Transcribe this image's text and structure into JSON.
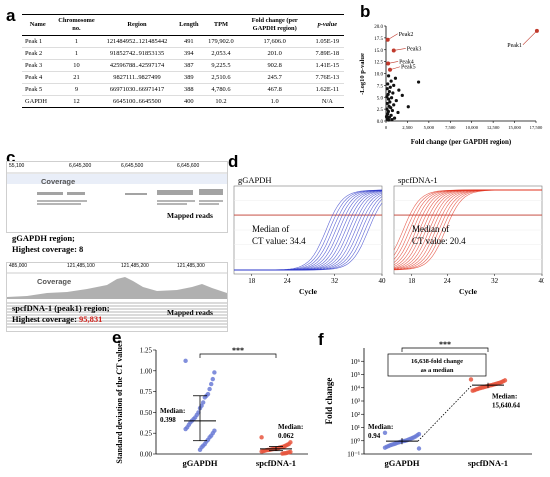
{
  "panels": {
    "a": "a",
    "b": "b",
    "c": "c",
    "d": "d",
    "e": "e",
    "f": "f"
  },
  "table": {
    "headers": [
      "Name",
      "Chromosome no.",
      "Region",
      "Length",
      "TPM",
      "Fold change (per GAPDH region)",
      "p-value"
    ],
    "rows": [
      [
        "Peak 1",
        "1",
        "121484952..121485442",
        "491",
        "179,902.0",
        "17,606.0",
        "1.05E-19"
      ],
      [
        "Peak 2",
        "1",
        "91852742..91853135",
        "394",
        "2,053.4",
        "201.0",
        "7.89E-18"
      ],
      [
        "Peak 3",
        "10",
        "42596788..42597174",
        "387",
        "9,225.5",
        "902.8",
        "1.41E-15"
      ],
      [
        "Peak 4",
        "21",
        "9827111..9827499",
        "389",
        "2,510.6",
        "245.7",
        "7.76E-13"
      ],
      [
        "Peak 5",
        "9",
        "66971030..66971417",
        "388",
        "4,780.6",
        "467.8",
        "1.62E-11"
      ],
      [
        "GAPDH",
        "12",
        "6645100..6645500",
        "400",
        "10.2",
        "1.0",
        "N/A"
      ]
    ]
  },
  "igv": {
    "top": {
      "ticks": [
        "55,100",
        "6,645,300",
        "6,645,500",
        "6,645,600"
      ],
      "coverage": "Coverage",
      "mapped": "Mapped reads",
      "title": "gGAPDH region;",
      "subtitle": "Highest coverage: 8"
    },
    "bottom": {
      "ticks": [
        "485,000",
        "121,485,100",
        "121,485,200",
        "121,485,300"
      ],
      "coverage": "Coverage",
      "mapped": "Mapped reads",
      "title": "spcfDNA-1 (peak1) region;",
      "subtitle_prefix": "Highest coverage: ",
      "subtitle_value": "95,831"
    }
  },
  "chart_data": [
    {
      "id": "b",
      "type": "scatter",
      "xlabel": "Fold change (per GAPDH region)",
      "ylabel": "-Log10 p-value",
      "xlim": [
        0,
        17500
      ],
      "ylim": [
        0,
        20
      ],
      "xticks": [
        "0",
        "2,500",
        "5,000",
        "7,500",
        "10,000",
        "12,500",
        "15,000",
        "17,500"
      ],
      "yticks": [
        "0.0",
        "2.5",
        "5.0",
        "7.5",
        "10.0",
        "12.5",
        "15.0",
        "17.5",
        "20.0"
      ],
      "labeled_points": [
        {
          "name": "Peak1",
          "x": 17606,
          "y": 18.98
        },
        {
          "name": "Peak2",
          "x": 201,
          "y": 17.1
        },
        {
          "name": "Peak3",
          "x": 902.8,
          "y": 14.85
        },
        {
          "name": "Peak4",
          "x": 245.7,
          "y": 12.11
        },
        {
          "name": "Peak5",
          "x": 467.8,
          "y": 10.79
        }
      ],
      "other_points": [
        {
          "x": 300,
          "y": 9.5
        },
        {
          "x": 1100,
          "y": 9.0
        },
        {
          "x": 600,
          "y": 8.4
        },
        {
          "x": 3800,
          "y": 8.2
        },
        {
          "x": 200,
          "y": 7.8
        },
        {
          "x": 900,
          "y": 7.5
        },
        {
          "x": 500,
          "y": 7.1
        },
        {
          "x": 150,
          "y": 6.8
        },
        {
          "x": 1500,
          "y": 6.5
        },
        {
          "x": 400,
          "y": 6.2
        },
        {
          "x": 800,
          "y": 5.9
        },
        {
          "x": 250,
          "y": 5.6
        },
        {
          "x": 1900,
          "y": 5.4
        },
        {
          "x": 100,
          "y": 5.1
        },
        {
          "x": 650,
          "y": 4.9
        },
        {
          "x": 300,
          "y": 4.6
        },
        {
          "x": 1200,
          "y": 4.3
        },
        {
          "x": 450,
          "y": 4.0
        },
        {
          "x": 150,
          "y": 3.7
        },
        {
          "x": 900,
          "y": 3.4
        },
        {
          "x": 350,
          "y": 3.1
        },
        {
          "x": 2600,
          "y": 3.0
        },
        {
          "x": 550,
          "y": 2.8
        },
        {
          "x": 120,
          "y": 2.5
        },
        {
          "x": 750,
          "y": 2.2
        },
        {
          "x": 280,
          "y": 2.0
        },
        {
          "x": 1400,
          "y": 1.8
        },
        {
          "x": 200,
          "y": 1.5
        },
        {
          "x": 600,
          "y": 1.2
        },
        {
          "x": 90,
          "y": 1.0
        },
        {
          "x": 400,
          "y": 0.8
        },
        {
          "x": 1000,
          "y": 0.6
        },
        {
          "x": 180,
          "y": 0.4
        },
        {
          "x": 320,
          "y": 0.2
        },
        {
          "x": 700,
          "y": 0.3
        },
        {
          "x": 60,
          "y": 0.9
        }
      ]
    },
    {
      "id": "d",
      "type": "line",
      "panels": [
        {
          "title": "gGAPDH",
          "annotation": [
            "Median of",
            "CT value: 34.4"
          ],
          "color": "#2b35c8",
          "center": 34.4
        },
        {
          "title": "spcfDNA-1",
          "annotation": [
            "Median of",
            "CT value: 20.4"
          ],
          "color": "#e0301e",
          "center": 20.4
        }
      ],
      "xlabel": "Cycle",
      "xticks": [
        "18",
        "24",
        "32",
        "40"
      ],
      "xlim": [
        15,
        40
      ]
    },
    {
      "id": "e",
      "type": "scatter",
      "ylabel": "Standard deviation of the CT values",
      "categories": [
        "gGAPDH",
        "spcfDNA-1"
      ],
      "ylim": [
        0,
        1.25
      ],
      "yticks": [
        "0.00",
        "0.25",
        "0.50",
        "0.75",
        "1.00",
        "1.25"
      ],
      "median_labels": [
        [
          "Median:",
          "0.398"
        ],
        [
          "Median:",
          "0.062"
        ]
      ],
      "significance": "***",
      "series": [
        {
          "name": "gGAPDH",
          "color": "#6b7bd6",
          "median": 0.398,
          "q1": 0.16,
          "q3": 0.7,
          "values": [
            1.12,
            0.98,
            0.9,
            0.84,
            0.78,
            0.72,
            0.7,
            0.68,
            0.62,
            0.58,
            0.55,
            0.5,
            0.47,
            0.44,
            0.42,
            0.4,
            0.38,
            0.35,
            0.32,
            0.3,
            0.28,
            0.25,
            0.22,
            0.2,
            0.17,
            0.15,
            0.12,
            0.1,
            0.08,
            0.05
          ]
        },
        {
          "name": "spcfDNA-1",
          "color": "#e8563e",
          "median": 0.062,
          "q1": 0.04,
          "q3": 0.09,
          "values": [
            0.2,
            0.14,
            0.12,
            0.11,
            0.1,
            0.09,
            0.085,
            0.08,
            0.075,
            0.07,
            0.065,
            0.062,
            0.06,
            0.055,
            0.05,
            0.048,
            0.045,
            0.04,
            0.035,
            0.03,
            0.025,
            0.02,
            0.015,
            0.01,
            0.008,
            0.005
          ]
        }
      ]
    },
    {
      "id": "f",
      "type": "scatter",
      "ylabel": "Fold change",
      "categories": [
        "gGAPDH",
        "spcfDNA-1"
      ],
      "ylim_log10": [
        -1,
        6
      ],
      "yticks": [
        "10⁻¹",
        "10⁰",
        "10¹",
        "10²",
        "10³",
        "10⁴",
        "10⁵",
        "10⁶"
      ],
      "median_labels": [
        [
          "Median:",
          "0.94"
        ],
        [
          "Median:",
          "15,640.64"
        ]
      ],
      "significance": "***",
      "annotation": [
        "16,638-fold change",
        "as a median"
      ],
      "series": [
        {
          "name": "gGAPDH",
          "color": "#6b7bd6",
          "median": 0.94,
          "q1": 0.55,
          "q3": 1.6,
          "values": [
            4.0,
            3.2,
            2.6,
            2.1,
            1.8,
            1.6,
            1.4,
            1.25,
            1.1,
            1.0,
            0.94,
            0.9,
            0.82,
            0.75,
            0.68,
            0.6,
            0.55,
            0.5,
            0.45,
            0.4,
            0.35,
            0.3,
            0.26
          ]
        },
        {
          "name": "spcfDNA-1",
          "color": "#e8563e",
          "median": 15640.64,
          "q1": 9800,
          "q3": 24000,
          "values": [
            42000,
            36000,
            31000,
            27000,
            24000,
            22000,
            20000,
            18500,
            17000,
            15640,
            14800,
            13500,
            12500,
            11500,
            10500,
            9800,
            9000,
            8200,
            7400,
            6600,
            6000
          ]
        }
      ]
    }
  ]
}
